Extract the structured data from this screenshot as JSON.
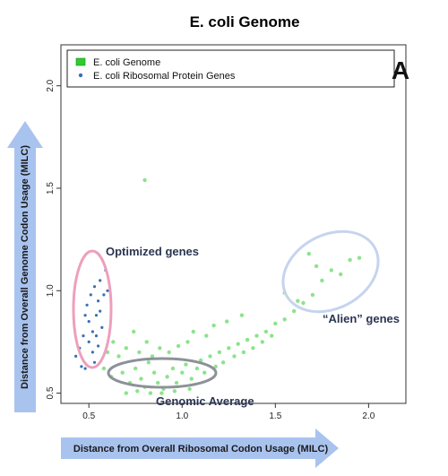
{
  "chart_data": {
    "type": "scatter",
    "title": "E. coli Genome",
    "panel_label": "A",
    "xlabel": "Distance from Overall Ribosomal Codon Usage (MILC)",
    "ylabel": "Distance from Overall Genome Codon Usage (MILC)",
    "xlim": [
      0.35,
      2.2
    ],
    "ylim": [
      0.45,
      2.2
    ],
    "x_ticks": [
      "0.5",
      "1.0",
      "1.5",
      "2.0"
    ],
    "y_ticks": [
      "0.5",
      "1.0",
      "1.5",
      "2.0"
    ],
    "x_tick_values": [
      0.5,
      1.0,
      1.5,
      2.0
    ],
    "y_tick_values": [
      0.5,
      1.0,
      1.5,
      2.0
    ],
    "grid": false,
    "legend_position": "top-left",
    "legend": [
      "E. coli Genome",
      "E. coli Ribosomal Protein Genes"
    ],
    "colors": {
      "genome": "#2ecc2e",
      "ribosomal": "#3a6fb5",
      "optimized_ellipse": "#ee9fbd",
      "alien_ellipse": "#c5d4ee",
      "average_ellipse": "#8c9199",
      "arrow": "#a9c3ef"
    },
    "annotations": {
      "optimized": "Optimized genes",
      "alien": "“Alien” genes",
      "average": "Genomic Average"
    },
    "series": [
      {
        "name": "E. coli Genome",
        "points": [
          [
            0.62,
            0.58
          ],
          [
            0.68,
            0.6
          ],
          [
            0.72,
            0.55
          ],
          [
            0.75,
            0.62
          ],
          [
            0.78,
            0.57
          ],
          [
            0.8,
            0.53
          ],
          [
            0.82,
            0.65
          ],
          [
            0.85,
            0.6
          ],
          [
            0.87,
            0.55
          ],
          [
            0.9,
            0.52
          ],
          [
            0.92,
            0.58
          ],
          [
            0.95,
            0.62
          ],
          [
            0.97,
            0.55
          ],
          [
            1.0,
            0.6
          ],
          [
            1.02,
            0.64
          ],
          [
            1.05,
            0.57
          ],
          [
            1.08,
            0.62
          ],
          [
            1.1,
            0.66
          ],
          [
            1.12,
            0.6
          ],
          [
            1.15,
            0.68
          ],
          [
            1.18,
            0.63
          ],
          [
            1.2,
            0.7
          ],
          [
            1.22,
            0.65
          ],
          [
            1.25,
            0.72
          ],
          [
            1.28,
            0.68
          ],
          [
            1.3,
            0.74
          ],
          [
            1.33,
            0.7
          ],
          [
            1.35,
            0.76
          ],
          [
            1.38,
            0.72
          ],
          [
            1.4,
            0.78
          ],
          [
            1.43,
            0.75
          ],
          [
            1.45,
            0.8
          ],
          [
            1.48,
            0.78
          ],
          [
            1.5,
            0.84
          ],
          [
            1.55,
            0.86
          ],
          [
            1.6,
            0.9
          ],
          [
            1.65,
            0.94
          ],
          [
            1.7,
            0.98
          ],
          [
            1.75,
            1.05
          ],
          [
            1.8,
            1.1
          ],
          [
            1.85,
            1.08
          ],
          [
            1.9,
            1.15
          ],
          [
            0.58,
            0.62
          ],
          [
            0.6,
            0.7
          ],
          [
            0.63,
            0.75
          ],
          [
            0.66,
            0.68
          ],
          [
            0.7,
            0.72
          ],
          [
            0.74,
            0.8
          ],
          [
            0.77,
            0.7
          ],
          [
            0.81,
            0.75
          ],
          [
            0.84,
            0.68
          ],
          [
            0.88,
            0.72
          ],
          [
            0.93,
            0.7
          ],
          [
            0.98,
            0.73
          ],
          [
            1.03,
            0.75
          ],
          [
            1.06,
            0.8
          ],
          [
            1.13,
            0.78
          ],
          [
            1.17,
            0.83
          ],
          [
            1.24,
            0.85
          ],
          [
            1.32,
            0.88
          ],
          [
            0.7,
            0.5
          ],
          [
            0.76,
            0.51
          ],
          [
            0.83,
            0.5
          ],
          [
            0.89,
            0.5
          ],
          [
            0.96,
            0.51
          ],
          [
            1.04,
            0.52
          ],
          [
            0.8,
            1.54
          ],
          [
            1.68,
            1.18
          ],
          [
            1.72,
            1.12
          ],
          [
            1.95,
            1.16
          ],
          [
            1.62,
            0.95
          ],
          [
            1.55,
            0.99
          ]
        ]
      },
      {
        "name": "E. coli Ribosomal Protein Genes",
        "points": [
          [
            0.43,
            0.68
          ],
          [
            0.45,
            0.72
          ],
          [
            0.46,
            0.63
          ],
          [
            0.47,
            0.78
          ],
          [
            0.48,
            0.62
          ],
          [
            0.49,
            0.93
          ],
          [
            0.5,
            0.85
          ],
          [
            0.5,
            0.75
          ],
          [
            0.51,
            0.98
          ],
          [
            0.52,
            0.8
          ],
          [
            0.53,
            1.02
          ],
          [
            0.53,
            0.65
          ],
          [
            0.54,
            0.88
          ],
          [
            0.55,
            0.95
          ],
          [
            0.55,
            0.73
          ],
          [
            0.56,
            1.05
          ],
          [
            0.57,
            0.82
          ],
          [
            0.58,
            0.98
          ],
          [
            0.59,
            1.1
          ],
          [
            0.56,
            0.9
          ],
          [
            0.52,
            0.7
          ],
          [
            0.48,
            0.88
          ],
          [
            0.54,
            0.78
          ],
          [
            0.6,
            1.0
          ]
        ]
      }
    ]
  }
}
